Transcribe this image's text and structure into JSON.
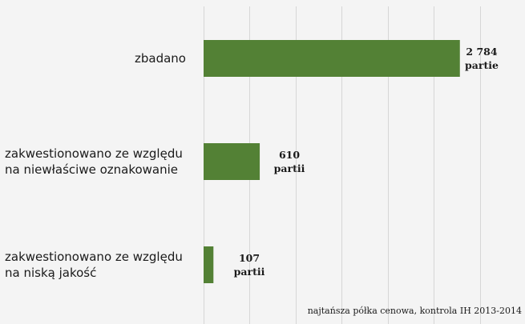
{
  "chart_data": {
    "type": "bar",
    "orientation": "horizontal",
    "categories": [
      [
        "zbadano"
      ],
      [
        "zakwestionowano ze względu",
        "na niewłaściwe oznakowanie"
      ],
      [
        "zakwestionowano ze względu",
        "na niską jakość"
      ]
    ],
    "values": [
      2784,
      610,
      107
    ],
    "data_labels": [
      [
        "2 784",
        "partie"
      ],
      [
        "610",
        "partii"
      ],
      [
        "107",
        "partii"
      ]
    ],
    "xlim": [
      0,
      3500
    ],
    "grid": "vertical",
    "bar_color": "#538135",
    "source_note": "najtańsza półka cenowa, kontrola IH 2013-2014"
  }
}
